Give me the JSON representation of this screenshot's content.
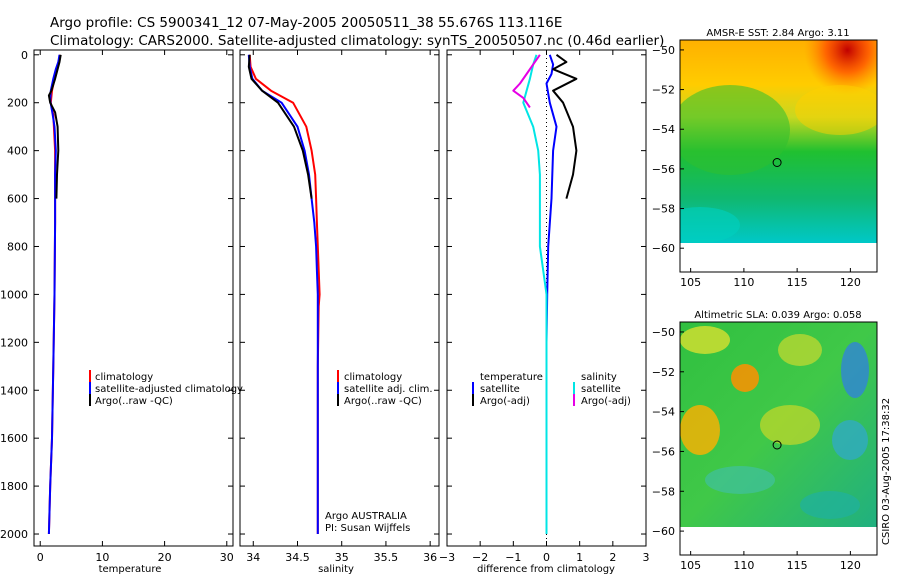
{
  "title": {
    "line1": "Argo profile: CS 5900341_12 07-May-2005 20050511_38 55.676S 113.116E",
    "line2": "Climatology: CARS2000. Satellite-adjusted climatology: synTS_20050507.nc (0.46d earlier)"
  },
  "colors": {
    "red": "#ff0000",
    "blue": "#0000ff",
    "black": "#000000",
    "cyan": "#00e5e5",
    "magenta": "#e600e6"
  },
  "chart_data": [
    {
      "type": "line",
      "name": "temperature-panel",
      "xlabel": "temperature",
      "xlim": [
        -1,
        31
      ],
      "ylim": [
        2050,
        -20
      ],
      "xticks": [
        0,
        10,
        20,
        30
      ],
      "yticks": [
        0,
        200,
        400,
        600,
        800,
        1000,
        1200,
        1400,
        1600,
        1800,
        2000
      ],
      "legend": {
        "placement": "center-right",
        "entries": [
          "climatology",
          "satellite-adjusted climatology",
          "Argo(..raw -QC)"
        ]
      },
      "series": [
        {
          "name": "climatology",
          "color": "red",
          "points": [
            [
              3.2,
              0
            ],
            [
              3.0,
              30
            ],
            [
              2.6,
              60
            ],
            [
              2.3,
              100
            ],
            [
              1.9,
              150
            ],
            [
              1.7,
              200
            ],
            [
              2.1,
              250
            ],
            [
              2.2,
              300
            ],
            [
              2.4,
              400
            ],
            [
              2.4,
              500
            ],
            [
              2.4,
              700
            ],
            [
              2.3,
              1000
            ],
            [
              2.1,
              1300
            ],
            [
              1.9,
              1600
            ],
            [
              1.6,
              1800
            ],
            [
              1.4,
              2000
            ]
          ]
        },
        {
          "name": "satellite-adjusted climatology",
          "color": "blue",
          "points": [
            [
              3.1,
              0
            ],
            [
              2.9,
              30
            ],
            [
              2.5,
              60
            ],
            [
              2.1,
              100
            ],
            [
              1.7,
              150
            ],
            [
              1.6,
              190
            ],
            [
              2.0,
              250
            ],
            [
              2.3,
              300
            ],
            [
              2.5,
              400
            ],
            [
              2.4,
              500
            ],
            [
              2.4,
              700
            ],
            [
              2.3,
              1000
            ],
            [
              2.1,
              1300
            ],
            [
              1.9,
              1600
            ],
            [
              1.6,
              1800
            ],
            [
              1.4,
              2000
            ]
          ]
        },
        {
          "name": "Argo(..raw -QC)",
          "color": "black",
          "points": [
            [
              3.3,
              0
            ],
            [
              3.1,
              30
            ],
            [
              2.8,
              60
            ],
            [
              2.4,
              100
            ],
            [
              1.8,
              150
            ],
            [
              1.4,
              170
            ],
            [
              1.6,
              200
            ],
            [
              2.4,
              240
            ],
            [
              2.8,
              300
            ],
            [
              2.9,
              400
            ],
            [
              2.7,
              500
            ],
            [
              2.6,
              600
            ]
          ]
        }
      ]
    },
    {
      "type": "line",
      "name": "salinity-panel",
      "xlabel": "salinity",
      "xlim": [
        33.85,
        36.1
      ],
      "ylim": [
        2050,
        -20
      ],
      "xticks": [
        34,
        34.5,
        35,
        35.5,
        36
      ],
      "yticks": [
        0,
        200,
        400,
        600,
        800,
        1000,
        1200,
        1400,
        1600,
        1800,
        2000
      ],
      "legend": {
        "placement": "center-right",
        "entries": [
          "climatology",
          "satellite adj. clim.",
          "Argo(..raw -QC)"
        ]
      },
      "series": [
        {
          "name": "climatology",
          "color": "red",
          "points": [
            [
              33.96,
              0
            ],
            [
              33.97,
              50
            ],
            [
              34.03,
              100
            ],
            [
              34.2,
              150
            ],
            [
              34.45,
              200
            ],
            [
              34.6,
              300
            ],
            [
              34.66,
              400
            ],
            [
              34.7,
              500
            ],
            [
              34.71,
              600
            ],
            [
              34.72,
              700
            ],
            [
              34.73,
              800
            ],
            [
              34.74,
              900
            ],
            [
              34.75,
              1000
            ],
            [
              34.74,
              1050
            ],
            [
              34.73,
              1300
            ],
            [
              34.73,
              1600
            ],
            [
              34.73,
              1800
            ],
            [
              34.73,
              2000
            ]
          ]
        },
        {
          "name": "satellite adj. clim.",
          "color": "blue",
          "points": [
            [
              33.95,
              0
            ],
            [
              33.96,
              50
            ],
            [
              33.99,
              100
            ],
            [
              34.1,
              150
            ],
            [
              34.32,
              200
            ],
            [
              34.5,
              300
            ],
            [
              34.58,
              400
            ],
            [
              34.63,
              500
            ],
            [
              34.66,
              600
            ],
            [
              34.69,
              700
            ],
            [
              34.71,
              800
            ],
            [
              34.72,
              900
            ],
            [
              34.73,
              1000
            ],
            [
              34.73,
              1200
            ],
            [
              34.73,
              1500
            ],
            [
              34.73,
              1800
            ],
            [
              34.73,
              2000
            ]
          ]
        },
        {
          "name": "Argo(..raw -QC)",
          "color": "black",
          "points": [
            [
              33.96,
              0
            ],
            [
              33.95,
              50
            ],
            [
              33.98,
              100
            ],
            [
              34.1,
              150
            ],
            [
              34.28,
              200
            ],
            [
              34.46,
              300
            ],
            [
              34.56,
              400
            ],
            [
              34.62,
              500
            ],
            [
              34.66,
              600
            ]
          ]
        }
      ],
      "annotations": [
        "Argo AUSTRALIA",
        "PI: Susan Wijffels"
      ]
    },
    {
      "type": "line",
      "name": "difference-panel",
      "xlabel": "difference from climatology",
      "xlim": [
        -3,
        3
      ],
      "ylim": [
        2050,
        -20
      ],
      "xticks": [
        -3,
        -2,
        -1,
        0,
        1,
        2,
        3
      ],
      "yticks": [
        0,
        200,
        400,
        600,
        800,
        1000,
        1200,
        1400,
        1600,
        1800,
        2000
      ],
      "legend": {
        "placement": "center-right",
        "entries": [
          "temperature",
          "satellite",
          "Argo(-adj)",
          "salinity",
          "satellite",
          "Argo(-adj)"
        ]
      },
      "series": [
        {
          "name": "temperature satellite",
          "color": "blue",
          "points": [
            [
              0.1,
              0
            ],
            [
              0.2,
              40
            ],
            [
              0.15,
              80
            ],
            [
              0.0,
              120
            ],
            [
              0.1,
              200
            ],
            [
              0.3,
              300
            ],
            [
              0.2,
              400
            ],
            [
              0.15,
              600
            ],
            [
              0.05,
              800
            ],
            [
              0.02,
              1000
            ],
            [
              0.0,
              1200
            ],
            [
              0.0,
              1500
            ],
            [
              0.0,
              1800
            ],
            [
              0.0,
              2000
            ]
          ]
        },
        {
          "name": "temperature Argo(-adj)",
          "color": "black",
          "points": [
            [
              0.3,
              0
            ],
            [
              0.6,
              30
            ],
            [
              0.2,
              60
            ],
            [
              0.9,
              100
            ],
            [
              0.2,
              150
            ],
            [
              0.5,
              200
            ],
            [
              0.8,
              300
            ],
            [
              0.9,
              400
            ],
            [
              0.8,
              500
            ],
            [
              0.6,
              600
            ]
          ]
        },
        {
          "name": "salinity satellite",
          "color": "cyan",
          "points": [
            [
              -0.3,
              0
            ],
            [
              -0.4,
              40
            ],
            [
              -0.5,
              100
            ],
            [
              -0.6,
              150
            ],
            [
              -0.7,
              200
            ],
            [
              -0.4,
              300
            ],
            [
              -0.25,
              400
            ],
            [
              -0.2,
              500
            ],
            [
              -0.2,
              600
            ],
            [
              -0.2,
              800
            ],
            [
              -0.1,
              900
            ],
            [
              0.0,
              1000
            ],
            [
              0.0,
              1200
            ],
            [
              0.0,
              1600
            ],
            [
              0.0,
              2000
            ]
          ]
        },
        {
          "name": "salinity Argo(-adj)",
          "color": "magenta",
          "points": [
            [
              -0.2,
              0
            ],
            [
              -0.4,
              40
            ],
            [
              -0.6,
              80
            ],
            [
              -0.8,
              120
            ],
            [
              -1.0,
              150
            ],
            [
              -0.7,
              180
            ],
            [
              -0.5,
              220
            ]
          ]
        }
      ]
    },
    {
      "type": "heatmap",
      "name": "sst-map",
      "title": "AMSR-E SST: 2.84 Argo: 3.11",
      "xlim": [
        104,
        122.5
      ],
      "ylim": [
        -61.2,
        -49.5
      ],
      "xticks": [
        105,
        110,
        115,
        120
      ],
      "yticks": [
        -50,
        -52,
        -54,
        -56,
        -58,
        -60
      ],
      "marker": {
        "lon": 113.116,
        "lat": -55.676
      }
    },
    {
      "type": "heatmap",
      "name": "sla-map",
      "title": "Altimetric SLA: 0.039 Argo: 0.058",
      "xlim": [
        104,
        122.5
      ],
      "ylim": [
        -61.2,
        -49.5
      ],
      "xticks": [
        105,
        110,
        115,
        120
      ],
      "yticks": [
        -50,
        -52,
        -54,
        -56,
        -58,
        -60
      ],
      "marker": {
        "lon": 113.116,
        "lat": -55.676
      }
    }
  ],
  "timestamp": "CSIRO 03-Aug-2005 17:38:32"
}
